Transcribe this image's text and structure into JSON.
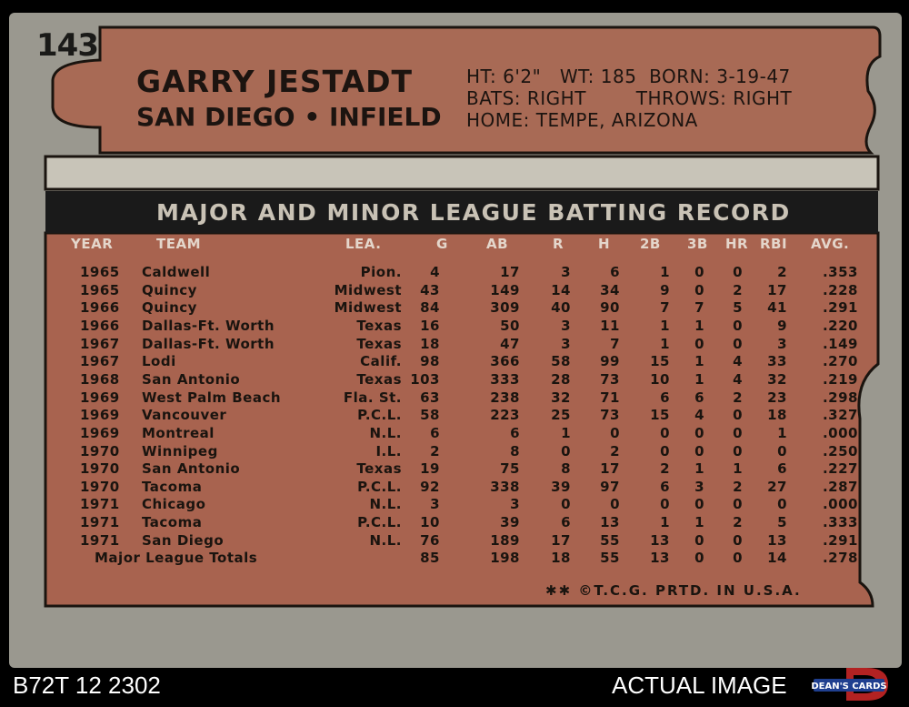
{
  "card": {
    "number": "143",
    "player_name": "GARRY JESTADT",
    "team_position": "SAN DIEGO • INFIELD",
    "bio_line1": "HT: 6'2\"   WT: 185  BORN: 3-19-47",
    "bio_line2": "BATS: RIGHT        THROWS: RIGHT",
    "bio_line3": "HOME: TEMPE, ARIZONA",
    "record_title": "MAJOR AND MINOR LEAGUE BATTING RECORD",
    "columns": [
      "YEAR",
      "TEAM",
      "LEA.",
      "G",
      "AB",
      "R",
      "H",
      "2B",
      "3B",
      "HR",
      "RBI",
      "AVG."
    ],
    "rows": [
      [
        "1965",
        "Caldwell",
        "Pion.",
        "4",
        "17",
        "3",
        "6",
        "1",
        "0",
        "0",
        "2",
        ".353"
      ],
      [
        "1965",
        "Quincy",
        "Midwest",
        "43",
        "149",
        "14",
        "34",
        "9",
        "0",
        "2",
        "17",
        ".228"
      ],
      [
        "1966",
        "Quincy",
        "Midwest",
        "84",
        "309",
        "40",
        "90",
        "7",
        "7",
        "5",
        "41",
        ".291"
      ],
      [
        "1966",
        "Dallas-Ft. Worth",
        "Texas",
        "16",
        "50",
        "3",
        "11",
        "1",
        "1",
        "0",
        "9",
        ".220"
      ],
      [
        "1967",
        "Dallas-Ft. Worth",
        "Texas",
        "18",
        "47",
        "3",
        "7",
        "1",
        "0",
        "0",
        "3",
        ".149"
      ],
      [
        "1967",
        "Lodi",
        "Calif.",
        "98",
        "366",
        "58",
        "99",
        "15",
        "1",
        "4",
        "33",
        ".270"
      ],
      [
        "1968",
        "San Antonio",
        "Texas",
        "103",
        "333",
        "28",
        "73",
        "10",
        "1",
        "4",
        "32",
        ".219"
      ],
      [
        "1969",
        "West Palm Beach",
        "Fla. St.",
        "63",
        "238",
        "32",
        "71",
        "6",
        "6",
        "2",
        "23",
        ".298"
      ],
      [
        "1969",
        "Vancouver",
        "P.C.L.",
        "58",
        "223",
        "25",
        "73",
        "15",
        "4",
        "0",
        "18",
        ".327"
      ],
      [
        "1969",
        "Montreal",
        "N.L.",
        "6",
        "6",
        "1",
        "0",
        "0",
        "0",
        "0",
        "1",
        ".000"
      ],
      [
        "1970",
        "Winnipeg",
        "I.L.",
        "2",
        "8",
        "0",
        "2",
        "0",
        "0",
        "0",
        "0",
        ".250"
      ],
      [
        "1970",
        "San Antonio",
        "Texas",
        "19",
        "75",
        "8",
        "17",
        "2",
        "1",
        "1",
        "6",
        ".227"
      ],
      [
        "1970",
        "Tacoma",
        "P.C.L.",
        "92",
        "338",
        "39",
        "97",
        "6",
        "3",
        "2",
        "27",
        ".287"
      ],
      [
        "1971",
        "Chicago",
        "N.L.",
        "3",
        "3",
        "0",
        "0",
        "0",
        "0",
        "0",
        "0",
        ".000"
      ],
      [
        "1971",
        "Tacoma",
        "P.C.L.",
        "10",
        "39",
        "6",
        "13",
        "1",
        "1",
        "2",
        "5",
        ".333"
      ],
      [
        "1971",
        "San Diego",
        "N.L.",
        "76",
        "189",
        "17",
        "55",
        "13",
        "0",
        "0",
        "13",
        ".291"
      ]
    ],
    "totals": [
      "Major League Totals",
      "85",
      "198",
      "18",
      "55",
      "13",
      "0",
      "0",
      "14",
      ".278"
    ],
    "copyright": "✱✱ ©T.C.G. PRTD. IN U.S.A."
  },
  "footer": {
    "catalog_id": "B72T 12 2302",
    "actual_image": "ACTUAL IMAGE",
    "logo_text": "DEAN'S CARDS"
  },
  "colors": {
    "card_gray": "#9a988f",
    "header_brown": "#a86a55",
    "table_brown": "#a8634f",
    "title_bar": "#1a1a1a"
  }
}
